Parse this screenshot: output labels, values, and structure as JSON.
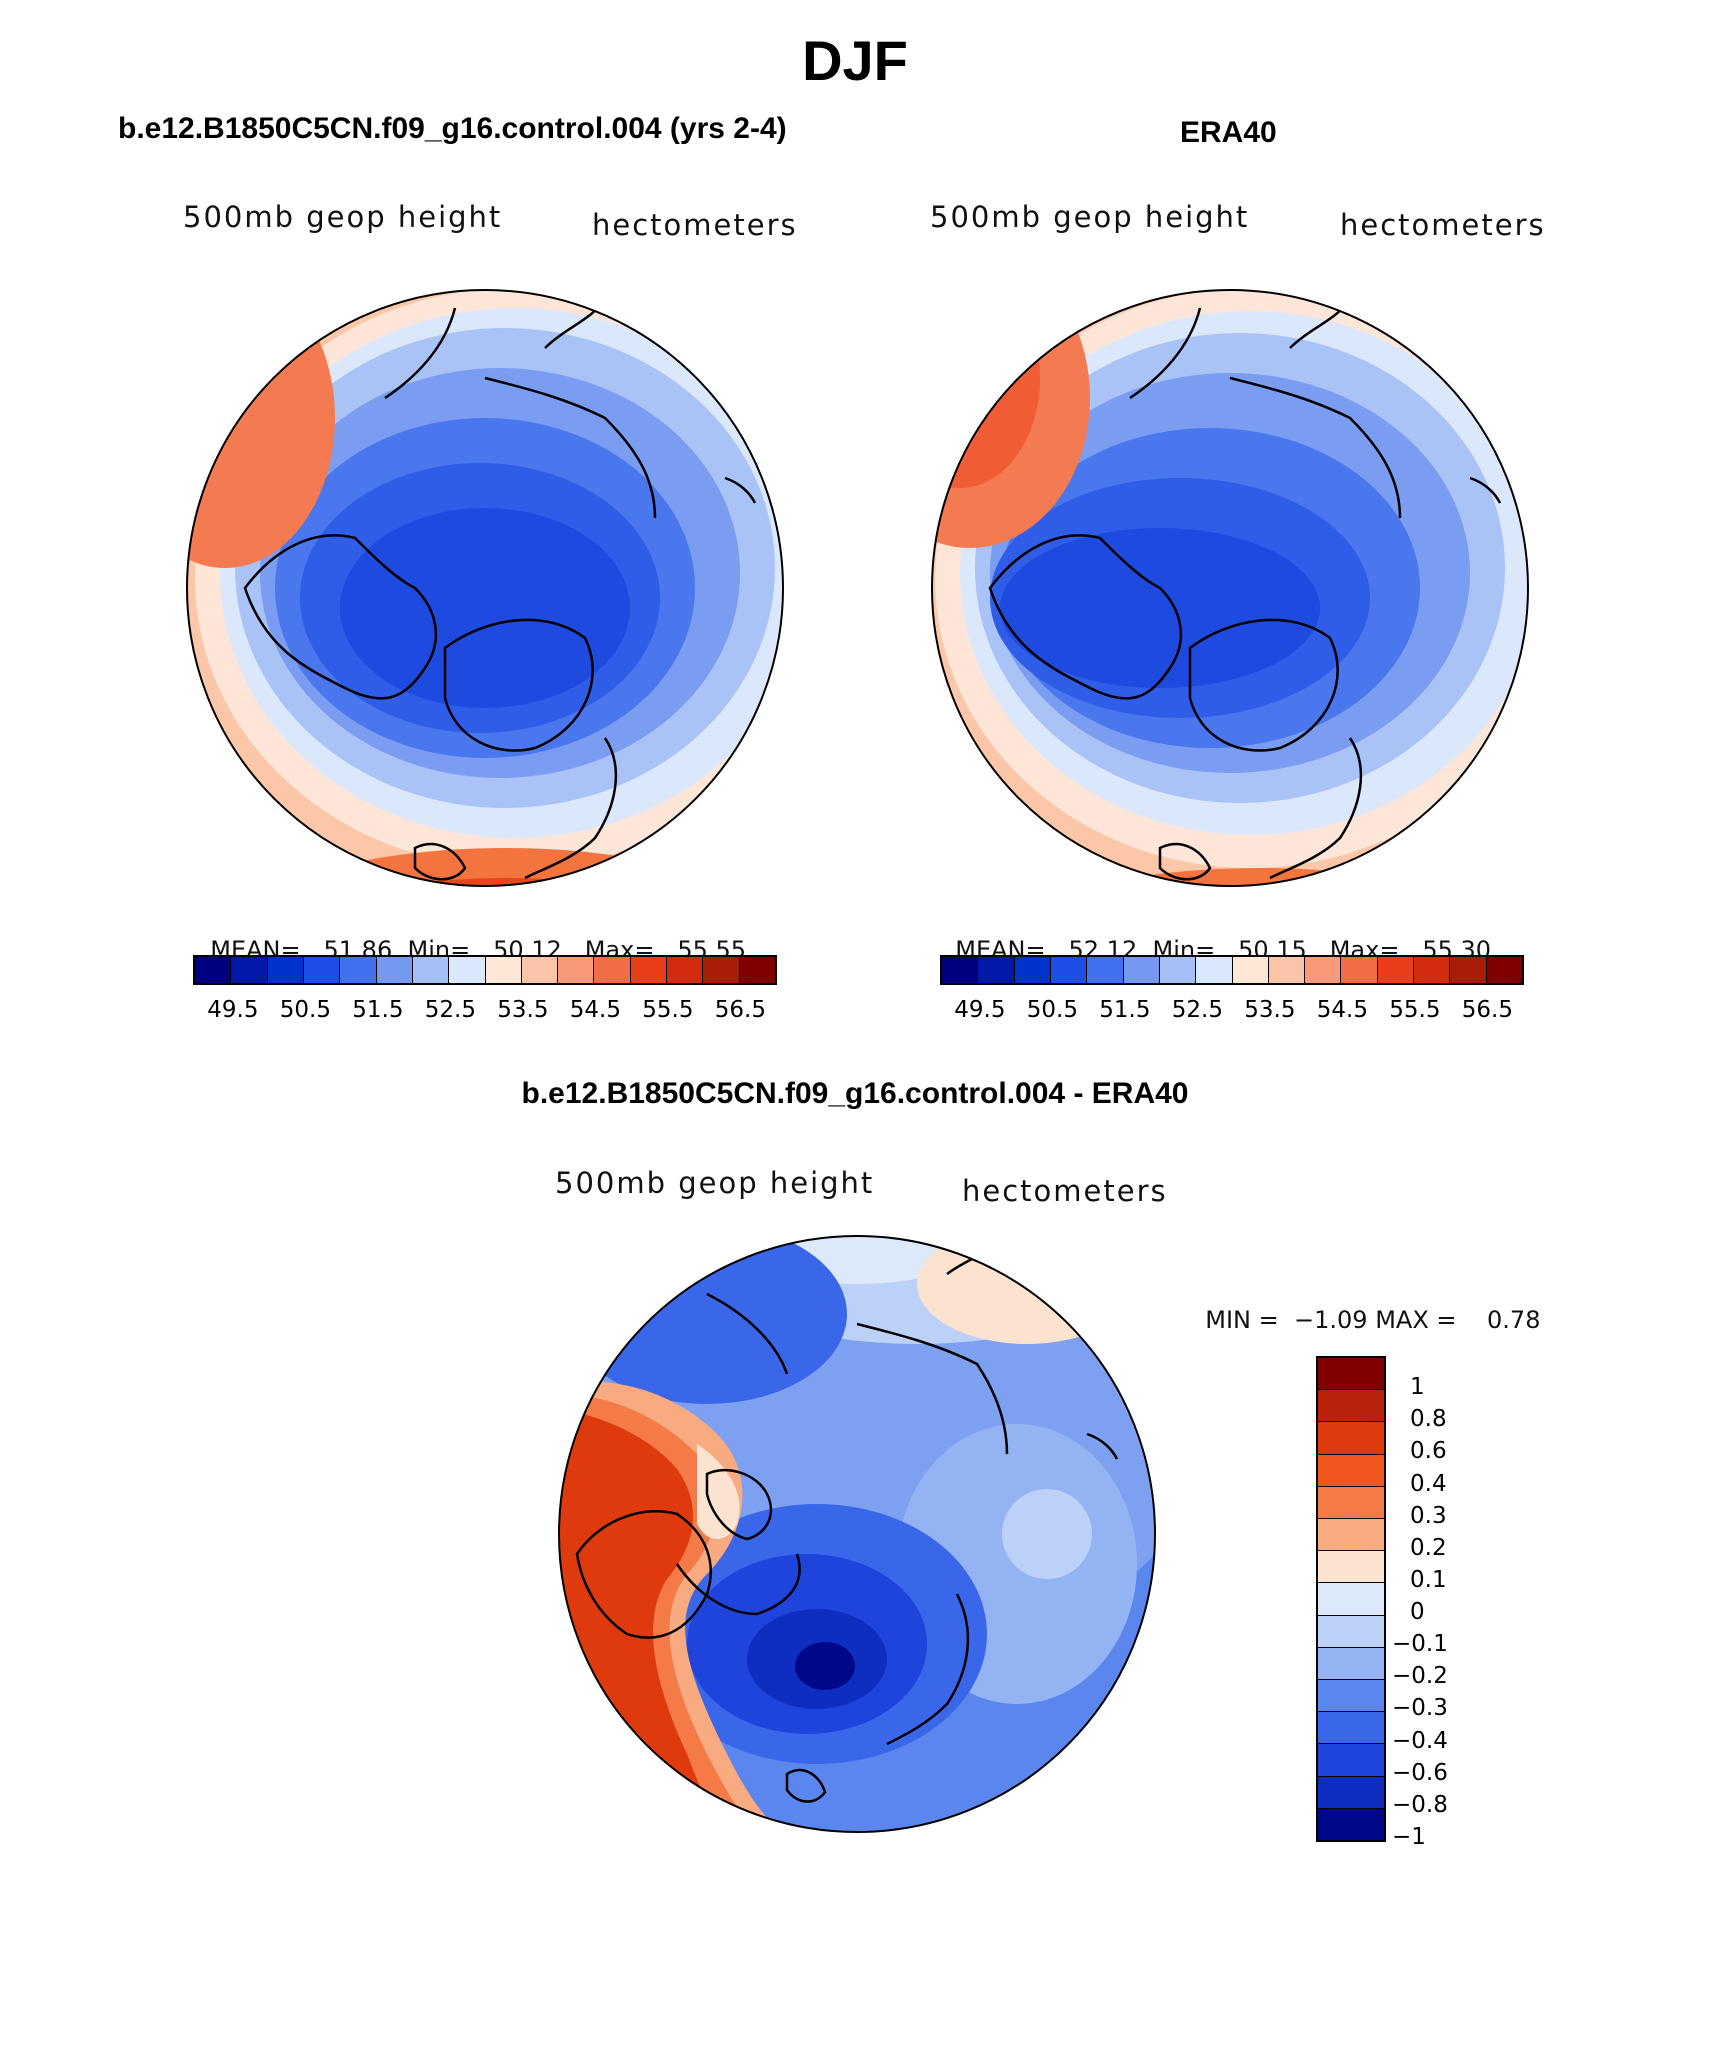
{
  "figure": {
    "title": "DJF"
  },
  "panels": {
    "model": {
      "title": "b.e12.B1850C5CN.f09_g16.control.004 (yrs 2-4)",
      "field": "500mb geop height",
      "units": "hectometers",
      "mean_label": "MEAN=",
      "mean": "51.86",
      "min_label": "Min=",
      "min": "50.12",
      "max_label": "Max=",
      "max": "55.55"
    },
    "obs": {
      "title": "ERA40",
      "field": "500mb geop height",
      "units": "hectometers",
      "mean_label": "MEAN=",
      "mean": "52.12",
      "min_label": "Min=",
      "min": "50.15",
      "max_label": "Max=",
      "max": "55.30"
    },
    "diff": {
      "title": "b.e12.B1850C5CN.f09_g16.control.004 - ERA40",
      "field": "500mb geop height",
      "units": "hectometers",
      "min_label": "MIN =",
      "min": "−1.09",
      "max_label": "MAX =",
      "max": "0.78"
    }
  },
  "colorbar_main": {
    "colors": [
      "#000080",
      "#0019a8",
      "#0033cc",
      "#1f4de8",
      "#4170f0",
      "#7699f0",
      "#a6c0f5",
      "#d9e8fc",
      "#fde8d8",
      "#fbc4a8",
      "#f89a7a",
      "#f26c45",
      "#eb3d1a",
      "#d42b0e",
      "#a81c08",
      "#800000"
    ],
    "labels": [
      "49.5",
      "50.5",
      "51.5",
      "52.5",
      "53.5",
      "54.5",
      "55.5",
      "56.5"
    ]
  },
  "colorbar_diff": {
    "colors": [
      "#800000",
      "#b8220a",
      "#df3a0e",
      "#f2561e",
      "#f47a48",
      "#f8aa80",
      "#fce3d0",
      "#dce9fb",
      "#bcd1f8",
      "#94b3f3",
      "#5b86ee",
      "#3a66ea",
      "#1e44dc",
      "#0e2ec0",
      "#00088a"
    ],
    "labels": [
      "1",
      "0.8",
      "0.6",
      "0.4",
      "0.3",
      "0.2",
      "0.1",
      "0",
      "−0.1",
      "−0.2",
      "−0.3",
      "−0.4",
      "−0.6",
      "−0.8",
      "−1"
    ]
  }
}
